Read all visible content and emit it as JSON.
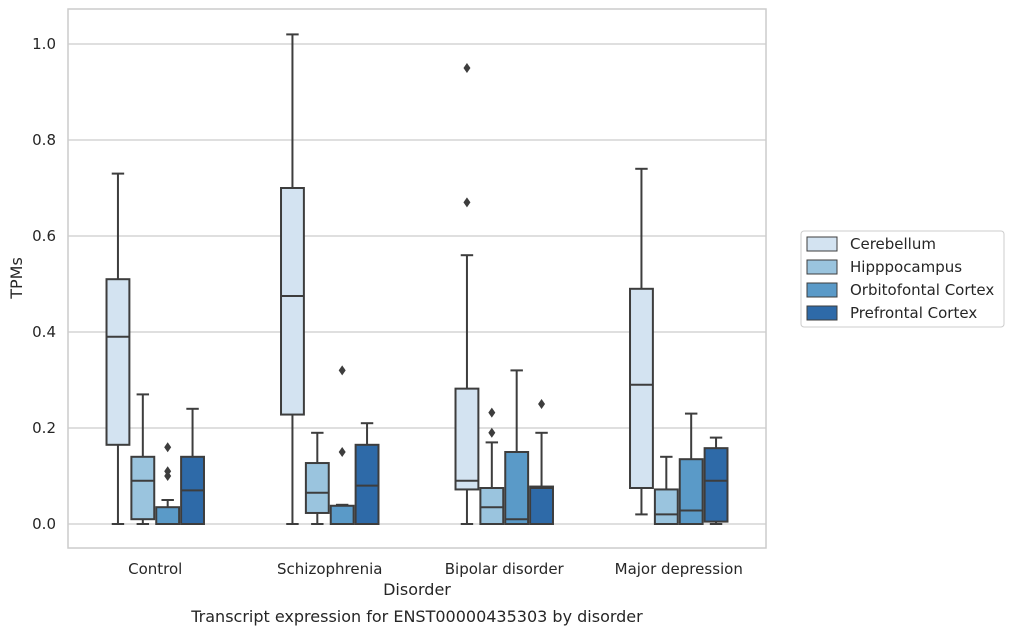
{
  "caption": "Transcript expression for ENST00000435303 by disorder",
  "chart_data": {
    "type": "box",
    "xlabel": "Disorder",
    "ylabel": "TPMs",
    "ylim": [
      -0.05,
      1.07
    ],
    "yticks": [
      "0.0",
      "0.2",
      "0.4",
      "0.6",
      "0.8",
      "1.0"
    ],
    "ytick_values": [
      0.0,
      0.2,
      0.4,
      0.6,
      0.8,
      1.0
    ],
    "grid": true,
    "legend_position": "right",
    "categories": [
      "Control",
      "Schizophrenia",
      "Bipolar disorder",
      "Major depression"
    ],
    "series": [
      {
        "name": "Cerebellum",
        "color": "#d3e3f1",
        "boxes": [
          {
            "whislo": 0.0,
            "q1": 0.165,
            "med": 0.39,
            "q3": 0.51,
            "whishi": 0.73,
            "fliers": []
          },
          {
            "whislo": 0.0,
            "q1": 0.228,
            "med": 0.475,
            "q3": 0.7,
            "whishi": 1.02,
            "fliers": []
          },
          {
            "whislo": 0.0,
            "q1": 0.072,
            "med": 0.09,
            "q3": 0.282,
            "whishi": 0.56,
            "fliers": [
              0.67,
              0.95
            ]
          },
          {
            "whislo": 0.02,
            "q1": 0.075,
            "med": 0.29,
            "q3": 0.49,
            "whishi": 0.74,
            "fliers": []
          }
        ]
      },
      {
        "name": "Hipppocampus",
        "color": "#9ac4de",
        "boxes": [
          {
            "whislo": 0.0,
            "q1": 0.01,
            "med": 0.09,
            "q3": 0.14,
            "whishi": 0.27,
            "fliers": []
          },
          {
            "whislo": 0.0,
            "q1": 0.023,
            "med": 0.065,
            "q3": 0.127,
            "whishi": 0.19,
            "fliers": []
          },
          {
            "whislo": 0.0,
            "q1": 0.0,
            "med": 0.035,
            "q3": 0.075,
            "whishi": 0.17,
            "fliers": [
              0.19,
              0.232
            ]
          },
          {
            "whislo": 0.0,
            "q1": 0.0,
            "med": 0.02,
            "q3": 0.072,
            "whishi": 0.14,
            "fliers": []
          }
        ]
      },
      {
        "name": "Orbitofontal Cortex",
        "color": "#5a9ac8",
        "boxes": [
          {
            "whislo": 0.0,
            "q1": 0.0,
            "med": 0.0,
            "q3": 0.035,
            "whishi": 0.05,
            "fliers": [
              0.1,
              0.11,
              0.16
            ]
          },
          {
            "whislo": 0.0,
            "q1": 0.0,
            "med": 0.0,
            "q3": 0.038,
            "whishi": 0.04,
            "fliers": [
              0.15,
              0.32
            ]
          },
          {
            "whislo": 0.0,
            "q1": 0.0,
            "med": 0.01,
            "q3": 0.15,
            "whishi": 0.32,
            "fliers": []
          },
          {
            "whislo": 0.0,
            "q1": 0.0,
            "med": 0.028,
            "q3": 0.135,
            "whishi": 0.23,
            "fliers": []
          }
        ]
      },
      {
        "name": "Prefrontal Cortex",
        "color": "#2e6aa8",
        "boxes": [
          {
            "whislo": 0.0,
            "q1": 0.0,
            "med": 0.07,
            "q3": 0.14,
            "whishi": 0.24,
            "fliers": []
          },
          {
            "whislo": 0.0,
            "q1": 0.0,
            "med": 0.08,
            "q3": 0.165,
            "whishi": 0.21,
            "fliers": []
          },
          {
            "whislo": 0.0,
            "q1": 0.0,
            "med": 0.075,
            "q3": 0.078,
            "whishi": 0.19,
            "fliers": [
              0.25
            ]
          },
          {
            "whislo": 0.0,
            "q1": 0.005,
            "med": 0.09,
            "q3": 0.158,
            "whishi": 0.18,
            "fliers": []
          }
        ]
      }
    ]
  }
}
